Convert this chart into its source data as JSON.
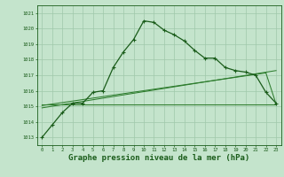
{
  "bg_color": "#c4e4cc",
  "grid_color": "#a0c8aa",
  "line_color_dark": "#1a5c1a",
  "line_color_mid": "#2e7d2e",
  "xlabel": "Graphe pression niveau de la mer (hPa)",
  "xlabel_fontsize": 6.5,
  "ylabel_ticks": [
    1013,
    1014,
    1015,
    1016,
    1017,
    1018,
    1019,
    1020,
    1021
  ],
  "xlim": [
    -0.5,
    23.5
  ],
  "ylim": [
    1012.5,
    1021.5
  ],
  "x_ticks": [
    0,
    1,
    2,
    3,
    4,
    5,
    6,
    7,
    8,
    9,
    10,
    11,
    12,
    13,
    14,
    15,
    16,
    17,
    18,
    19,
    20,
    21,
    22,
    23
  ],
  "main_line": [
    1013.0,
    1013.8,
    1014.6,
    1015.2,
    1015.2,
    1015.9,
    1016.0,
    1017.5,
    1018.5,
    1019.3,
    1020.5,
    1020.4,
    1019.9,
    1019.6,
    1019.2,
    1018.6,
    1018.1,
    1018.1,
    1017.5,
    1017.3,
    1017.2,
    1017.0,
    1015.9,
    1015.2
  ],
  "ref_line_flat": [
    1015.1,
    1015.1,
    1015.1,
    1015.1,
    1015.1,
    1015.1,
    1015.1,
    1015.1,
    1015.1,
    1015.1,
    1015.1,
    1015.1,
    1015.1,
    1015.1,
    1015.1,
    1015.1,
    1015.1,
    1015.1,
    1015.1,
    1015.1,
    1015.1,
    1015.1,
    1015.1,
    1015.1
  ],
  "ref_line_trend1_x": [
    0,
    23
  ],
  "ref_line_trend1_y": [
    1014.9,
    1017.3
  ],
  "ref_line_trend2_x": [
    0,
    22,
    23
  ],
  "ref_line_trend2_y": [
    1015.05,
    1017.15,
    1015.15
  ]
}
